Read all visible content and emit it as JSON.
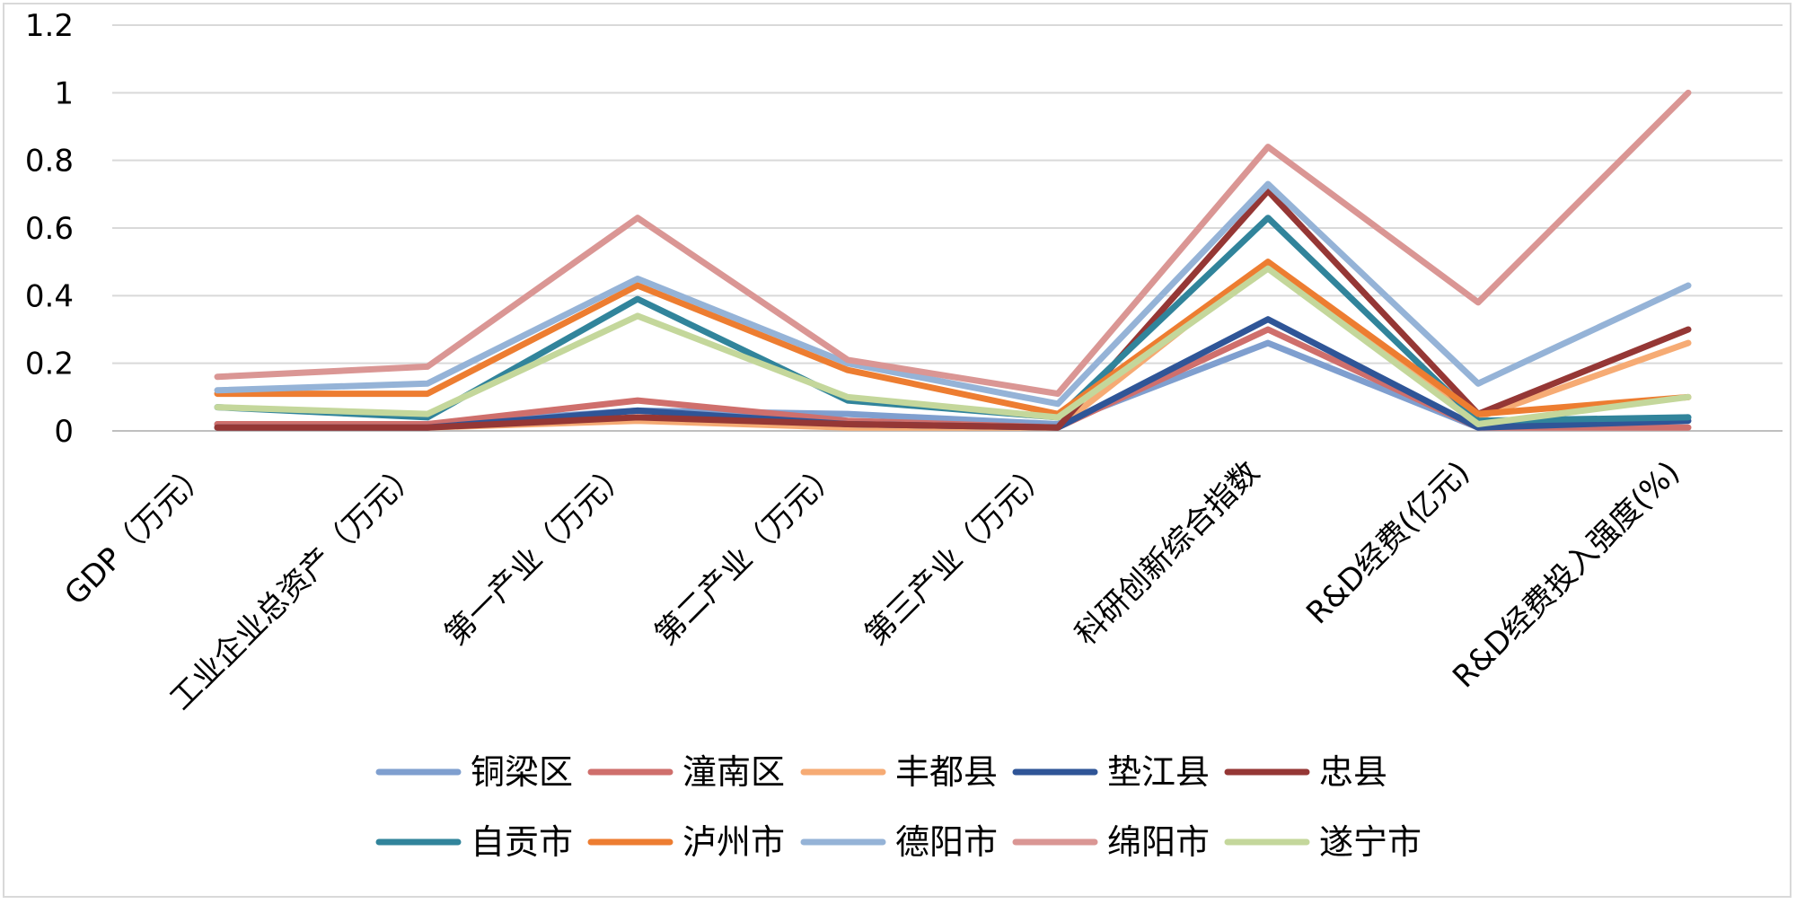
{
  "chart_data": {
    "type": "line",
    "title": "",
    "xlabel": "",
    "ylabel": "",
    "ylim": [
      0,
      1.2
    ],
    "yticks": [
      "0",
      "0.2",
      "0.4",
      "0.6",
      "0.8",
      "1",
      "1.2"
    ],
    "grid": true,
    "legend_position": "bottom",
    "categories": [
      "GDP（万元）",
      "工业企业总资产（万元）",
      "第一产业（万元）",
      "第二产业（万元）",
      "第三产业（万元）",
      "科研创新综合指数",
      "R&D经费(亿元)",
      "R&D经费投入强度(%)"
    ],
    "series": [
      {
        "name": "铜梁区",
        "color": "#7f9fcf",
        "values": [
          0.02,
          0.02,
          0.06,
          0.05,
          0.02,
          0.26,
          0.01,
          0.04
        ]
      },
      {
        "name": "潼南区",
        "color": "#cf6f6c",
        "values": [
          0.02,
          0.02,
          0.09,
          0.03,
          0.01,
          0.3,
          0.01,
          0.01
        ]
      },
      {
        "name": "丰都县",
        "color": "#f6ab74",
        "values": [
          0.01,
          0.01,
          0.03,
          0.01,
          0.01,
          0.5,
          0.04,
          0.26
        ]
      },
      {
        "name": "垫江县",
        "color": "#2f5597",
        "values": [
          0.01,
          0.01,
          0.06,
          0.02,
          0.01,
          0.33,
          0.01,
          0.03
        ]
      },
      {
        "name": "忠县",
        "color": "#953735",
        "values": [
          0.01,
          0.01,
          0.04,
          0.02,
          0.01,
          0.71,
          0.05,
          0.3
        ]
      },
      {
        "name": "自贡市",
        "color": "#31849b",
        "values": [
          0.07,
          0.04,
          0.39,
          0.09,
          0.04,
          0.63,
          0.03,
          0.04
        ]
      },
      {
        "name": "泸州市",
        "color": "#ed7d31",
        "values": [
          0.11,
          0.11,
          0.43,
          0.18,
          0.05,
          0.5,
          0.05,
          0.1
        ]
      },
      {
        "name": "德阳市",
        "color": "#95b3d7",
        "values": [
          0.12,
          0.14,
          0.45,
          0.2,
          0.08,
          0.73,
          0.14,
          0.43
        ]
      },
      {
        "name": "绵阳市",
        "color": "#da9694",
        "values": [
          0.16,
          0.19,
          0.63,
          0.21,
          0.11,
          0.84,
          0.38,
          1.0
        ]
      },
      {
        "name": "遂宁市",
        "color": "#c4d79b",
        "values": [
          0.07,
          0.05,
          0.34,
          0.1,
          0.04,
          0.48,
          0.02,
          0.1
        ]
      }
    ]
  }
}
